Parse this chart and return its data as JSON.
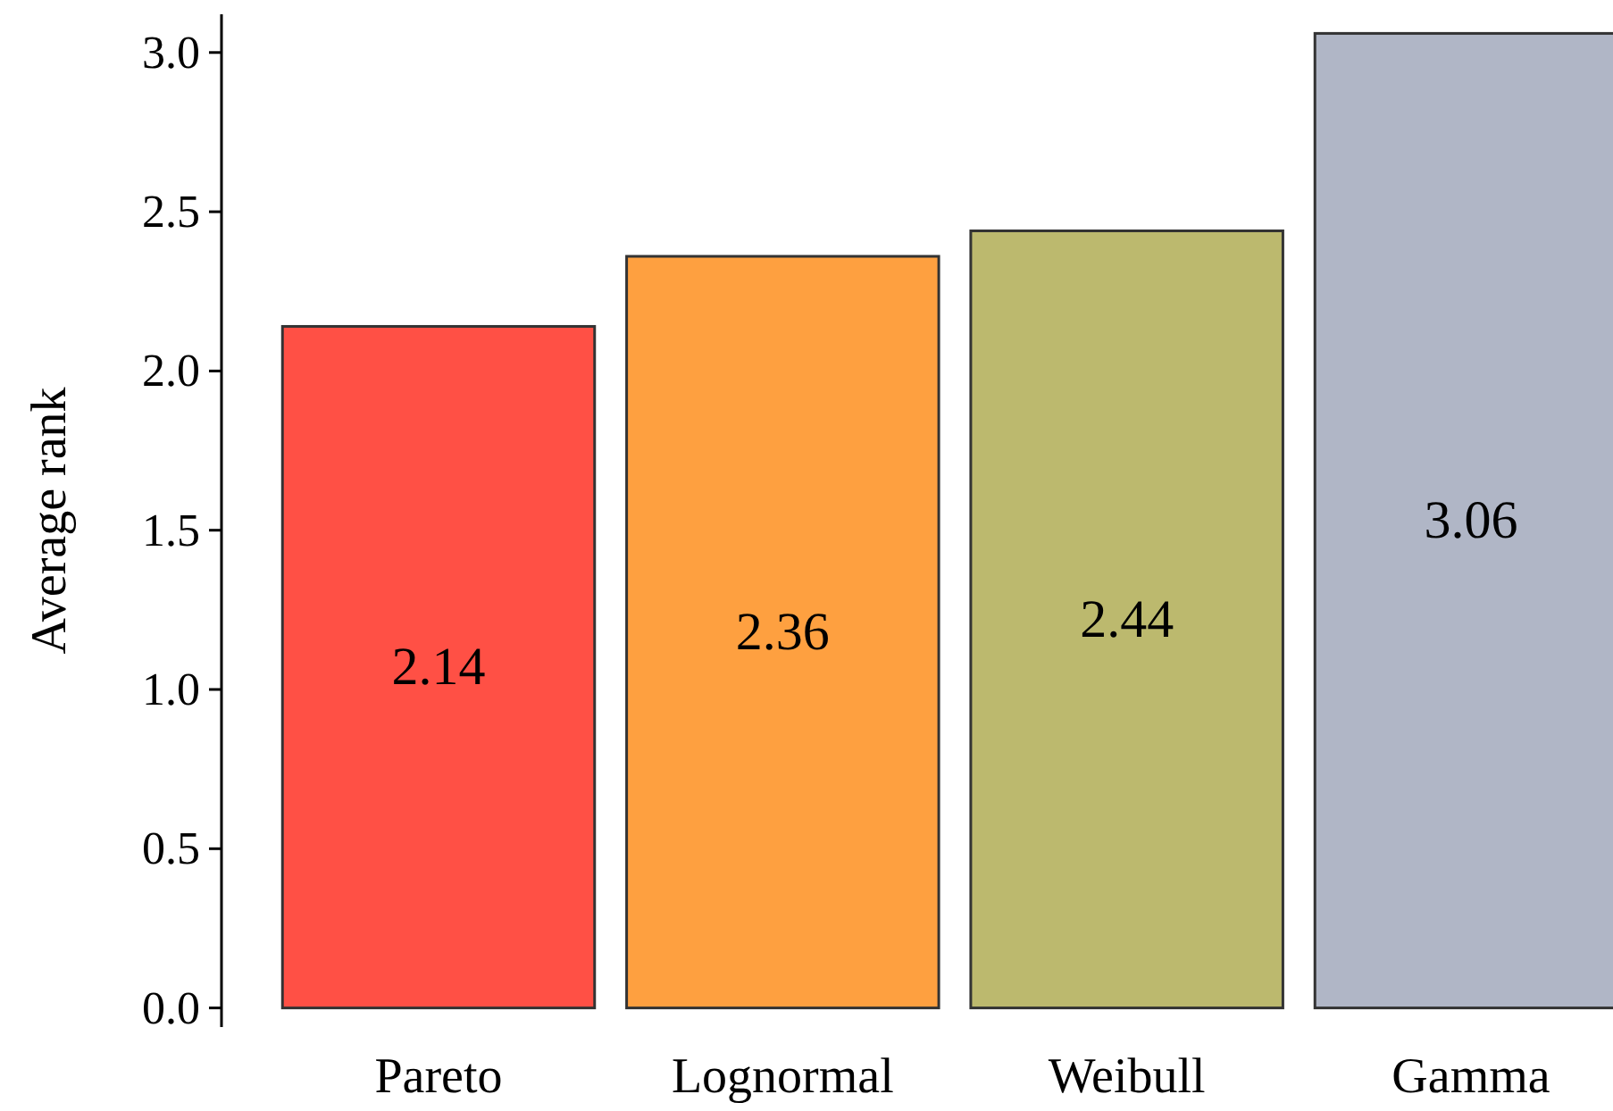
{
  "chart_data": {
    "type": "bar",
    "ylabel": "Average rank",
    "categories": [
      "Pareto",
      "Lognormal",
      "Weibull",
      "Gamma"
    ],
    "values": [
      2.14,
      2.36,
      2.44,
      3.06
    ],
    "colors": [
      "#ff5045",
      "#fea040",
      "#bcb96e",
      "#b0b6c6"
    ],
    "ylim": [
      -0.06,
      3.12
    ],
    "yticks": [
      {
        "value": 0,
        "label": "0.0"
      },
      {
        "value": 0.5,
        "label": "0.5"
      },
      {
        "value": 1,
        "label": "1.0"
      },
      {
        "value": 1.5,
        "label": "1.5"
      },
      {
        "value": 2,
        "label": "2.0"
      },
      {
        "value": 2.5,
        "label": "2.5"
      },
      {
        "value": 3,
        "label": "3.0"
      }
    ],
    "data_labels": true
  }
}
